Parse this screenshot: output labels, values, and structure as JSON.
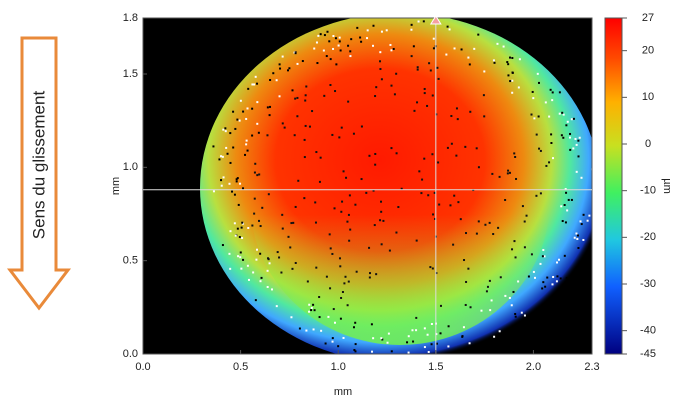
{
  "annotation": "Sens du glissement",
  "chart_data": {
    "type": "image",
    "xlabel": "mm",
    "ylabel": "mm",
    "colorbar_label": "µm",
    "xlim": [
      0,
      2.3
    ],
    "xticks": [
      {
        "value": 0,
        "label": "0.0"
      },
      0.5,
      {
        "value": 1,
        "label": "1.0"
      },
      1.5,
      {
        "value": 2,
        "label": "2.0"
      },
      2.3
    ],
    "ylim": [
      0,
      1.8
    ],
    "yticks": [
      {
        "value": 0,
        "label": "0.0"
      },
      0.5,
      {
        "value": 1,
        "label": "1.0"
      },
      1.5,
      1.8
    ],
    "clim": [
      -45,
      27
    ],
    "cticks": [
      27,
      20,
      10,
      0,
      -10,
      -20,
      -30,
      -40,
      -45
    ],
    "cursor_x": 1.5,
    "cursor_y": 0.88
  }
}
